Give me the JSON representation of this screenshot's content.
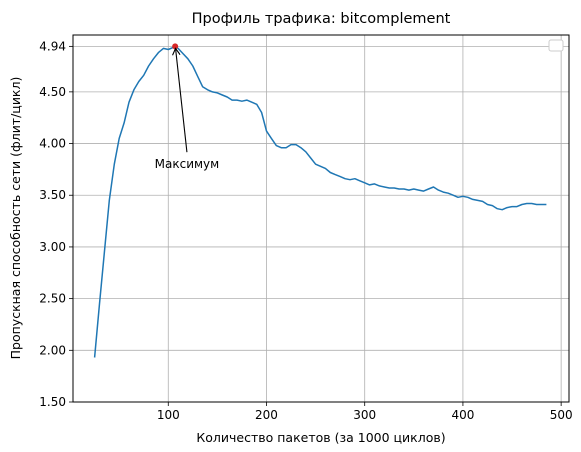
{
  "chart_data": {
    "type": "line",
    "title": "Профиль трафика: bitcomplement",
    "xlabel": "Количество пакетов (за 1000 циклов)",
    "ylabel": "Пропускная способность сети (флит/цикл)",
    "xlim": [
      3,
      508
    ],
    "ylim": [
      1.5,
      5.05
    ],
    "xticks": [
      100,
      200,
      300,
      400,
      500
    ],
    "xtick_labels": [
      "100",
      "200",
      "300",
      "400",
      "500"
    ],
    "yticks": [
      1.5,
      2.0,
      2.5,
      3.0,
      3.5,
      4.0,
      4.5,
      4.94
    ],
    "ytick_labels": [
      "1.50",
      "2.00",
      "2.50",
      "3.00",
      "3.50",
      "4.00",
      "4.50",
      "4.94"
    ],
    "grid": true,
    "legend": "top-right (empty)",
    "colors": {
      "line": "#1f77b4",
      "marker": "#d62728",
      "grid": "#b0b0b0"
    },
    "series": [
      {
        "x": [
          25,
          30,
          35,
          40,
          45,
          50,
          55,
          60,
          65,
          70,
          75,
          80,
          85,
          90,
          95,
          100,
          105,
          107,
          110,
          115,
          120,
          125,
          130,
          135,
          140,
          145,
          150,
          155,
          160,
          165,
          170,
          175,
          180,
          185,
          190,
          195,
          200,
          205,
          210,
          215,
          220,
          225,
          230,
          235,
          240,
          245,
          250,
          255,
          260,
          265,
          270,
          275,
          280,
          285,
          290,
          295,
          300,
          305,
          310,
          315,
          320,
          325,
          330,
          335,
          340,
          345,
          350,
          355,
          360,
          365,
          370,
          375,
          380,
          385,
          390,
          395,
          400,
          405,
          410,
          415,
          420,
          425,
          430,
          435,
          440,
          445,
          450,
          455,
          460,
          465,
          470,
          475,
          480,
          485
        ],
        "y": [
          1.93,
          2.45,
          2.95,
          3.45,
          3.8,
          4.05,
          4.2,
          4.4,
          4.52,
          4.6,
          4.66,
          4.75,
          4.82,
          4.88,
          4.92,
          4.91,
          4.93,
          4.94,
          4.92,
          4.87,
          4.82,
          4.75,
          4.65,
          4.55,
          4.52,
          4.5,
          4.49,
          4.47,
          4.45,
          4.42,
          4.42,
          4.41,
          4.42,
          4.4,
          4.38,
          4.3,
          4.12,
          4.05,
          3.98,
          3.96,
          3.96,
          3.99,
          3.99,
          3.96,
          3.92,
          3.86,
          3.8,
          3.78,
          3.76,
          3.72,
          3.7,
          3.68,
          3.66,
          3.65,
          3.66,
          3.64,
          3.62,
          3.6,
          3.61,
          3.59,
          3.58,
          3.57,
          3.57,
          3.56,
          3.56,
          3.55,
          3.56,
          3.55,
          3.54,
          3.56,
          3.58,
          3.55,
          3.53,
          3.52,
          3.5,
          3.48,
          3.49,
          3.48,
          3.46,
          3.45,
          3.44,
          3.41,
          3.4,
          3.37,
          3.36,
          3.38,
          3.39,
          3.39,
          3.41,
          3.42,
          3.42,
          3.41,
          3.41,
          3.41
        ]
      }
    ],
    "max_point": {
      "x": 107,
      "y": 4.94
    },
    "annotation": {
      "text": "Максимум",
      "x": 119,
      "y": 3.8
    }
  }
}
